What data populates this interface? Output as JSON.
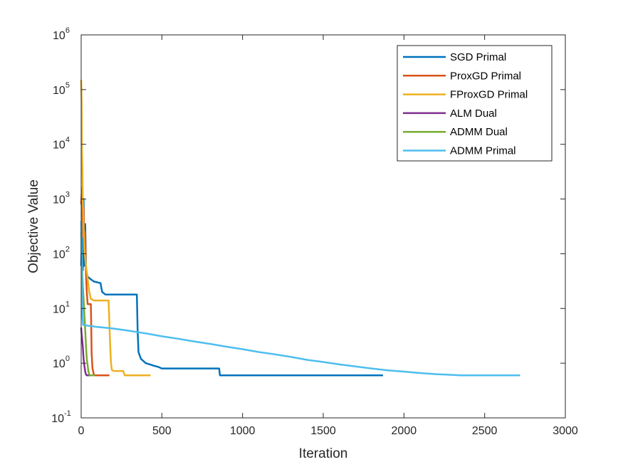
{
  "chart_data": {
    "type": "line",
    "title": "",
    "xlabel": "Iteration",
    "ylabel": "Objective Value",
    "xlim": [
      0,
      3000
    ],
    "ylim": [
      0.1,
      1000000
    ],
    "yscale": "log",
    "grid": false,
    "legend_position": "top-right",
    "x_ticks": [
      "0",
      "500",
      "1000",
      "1500",
      "2000",
      "2500",
      "3000"
    ],
    "y_ticks": [
      {
        "base": "10",
        "exp": "-1"
      },
      {
        "base": "10",
        "exp": "0"
      },
      {
        "base": "10",
        "exp": "1"
      },
      {
        "base": "10",
        "exp": "2"
      },
      {
        "base": "10",
        "exp": "3"
      },
      {
        "base": "10",
        "exp": "4"
      },
      {
        "base": "10",
        "exp": "5"
      },
      {
        "base": "10",
        "exp": "6"
      }
    ],
    "series": [
      {
        "name": "SGD Primal",
        "color": "#0072BD",
        "points": [
          [
            0,
            60
          ],
          [
            5,
            300
          ],
          [
            10,
            50
          ],
          [
            15,
            1000
          ],
          [
            20,
            60
          ],
          [
            25,
            350
          ],
          [
            30,
            50
          ],
          [
            40,
            38
          ],
          [
            60,
            34
          ],
          [
            80,
            31
          ],
          [
            100,
            30
          ],
          [
            120,
            29
          ],
          [
            125,
            24
          ],
          [
            130,
            20
          ],
          [
            150,
            18
          ],
          [
            200,
            18
          ],
          [
            250,
            18
          ],
          [
            300,
            18
          ],
          [
            345,
            18
          ],
          [
            350,
            4
          ],
          [
            355,
            1.6
          ],
          [
            370,
            1.2
          ],
          [
            400,
            1.0
          ],
          [
            450,
            0.9
          ],
          [
            480,
            0.85
          ],
          [
            500,
            0.8
          ],
          [
            600,
            0.8
          ],
          [
            700,
            0.8
          ],
          [
            800,
            0.8
          ],
          [
            855,
            0.8
          ],
          [
            860,
            0.6
          ],
          [
            1000,
            0.6
          ],
          [
            1500,
            0.6
          ],
          [
            1870,
            0.6
          ]
        ]
      },
      {
        "name": "ProxGD Primal",
        "color": "#D95319",
        "points": [
          [
            0,
            800
          ],
          [
            5,
            1600
          ],
          [
            10,
            200
          ],
          [
            15,
            700
          ],
          [
            20,
            100
          ],
          [
            25,
            250
          ],
          [
            30,
            40
          ],
          [
            35,
            20
          ],
          [
            40,
            12
          ],
          [
            45,
            12
          ],
          [
            60,
            12
          ],
          [
            62,
            5
          ],
          [
            65,
            1.5
          ],
          [
            70,
            0.8
          ],
          [
            80,
            0.6
          ],
          [
            100,
            0.6
          ],
          [
            130,
            0.6
          ],
          [
            175,
            0.6
          ]
        ]
      },
      {
        "name": "FProxGD Primal",
        "color": "#EDB120",
        "points": [
          [
            0,
            150000
          ],
          [
            3,
            60000
          ],
          [
            5,
            8000
          ],
          [
            8,
            3000
          ],
          [
            10,
            1000
          ],
          [
            15,
            300
          ],
          [
            20,
            120
          ],
          [
            30,
            60
          ],
          [
            40,
            35
          ],
          [
            50,
            20
          ],
          [
            60,
            15
          ],
          [
            80,
            14
          ],
          [
            100,
            14
          ],
          [
            120,
            14
          ],
          [
            150,
            14
          ],
          [
            170,
            14
          ],
          [
            175,
            5
          ],
          [
            180,
            2
          ],
          [
            185,
            1
          ],
          [
            190,
            0.75
          ],
          [
            200,
            0.72
          ],
          [
            220,
            0.72
          ],
          [
            260,
            0.72
          ],
          [
            270,
            0.6
          ],
          [
            300,
            0.6
          ],
          [
            350,
            0.6
          ],
          [
            430,
            0.6
          ]
        ]
      },
      {
        "name": "ALM Dual",
        "color": "#7E2F8E",
        "points": [
          [
            0,
            4.5
          ],
          [
            2,
            3.5
          ],
          [
            5,
            3
          ],
          [
            10,
            2
          ],
          [
            15,
            1.2
          ],
          [
            20,
            0.9
          ],
          [
            25,
            0.7
          ],
          [
            30,
            0.62
          ],
          [
            35,
            0.6
          ],
          [
            50,
            0.6
          ],
          [
            60,
            0.6
          ]
        ]
      },
      {
        "name": "ADMM Dual",
        "color": "#77AC30",
        "points": [
          [
            0,
            250
          ],
          [
            5,
            60
          ],
          [
            10,
            25
          ],
          [
            15,
            15
          ],
          [
            20,
            8
          ],
          [
            25,
            4
          ],
          [
            30,
            2
          ],
          [
            35,
            1.2
          ],
          [
            40,
            0.9
          ],
          [
            45,
            0.7
          ],
          [
            50,
            0.62
          ],
          [
            55,
            0.6
          ],
          [
            70,
            0.6
          ],
          [
            85,
            0.6
          ]
        ]
      },
      {
        "name": "ADMM Primal",
        "color": "#4DBEEE",
        "points": [
          [
            0,
            400
          ],
          [
            3,
            100
          ],
          [
            5,
            30
          ],
          [
            8,
            7
          ],
          [
            12,
            5
          ],
          [
            50,
            4.8
          ],
          [
            100,
            4.6
          ],
          [
            200,
            4.3
          ],
          [
            300,
            3.9
          ],
          [
            400,
            3.5
          ],
          [
            500,
            3.1
          ],
          [
            600,
            2.8
          ],
          [
            700,
            2.5
          ],
          [
            800,
            2.25
          ],
          [
            900,
            2.0
          ],
          [
            1000,
            1.8
          ],
          [
            1100,
            1.6
          ],
          [
            1200,
            1.45
          ],
          [
            1300,
            1.3
          ],
          [
            1400,
            1.15
          ],
          [
            1500,
            1.05
          ],
          [
            1600,
            0.95
          ],
          [
            1700,
            0.87
          ],
          [
            1800,
            0.8
          ],
          [
            1900,
            0.74
          ],
          [
            2000,
            0.7
          ],
          [
            2100,
            0.66
          ],
          [
            2200,
            0.63
          ],
          [
            2300,
            0.61
          ],
          [
            2350,
            0.6
          ],
          [
            2500,
            0.6
          ],
          [
            2720,
            0.6
          ]
        ]
      }
    ]
  }
}
